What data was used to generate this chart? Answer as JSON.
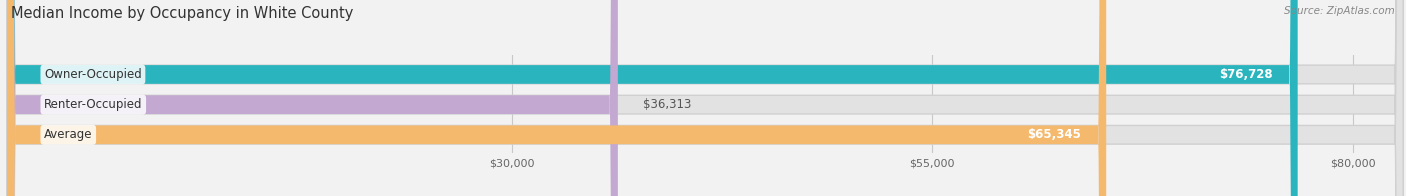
{
  "title": "Median Income by Occupancy in White County",
  "source": "Source: ZipAtlas.com",
  "categories": [
    "Owner-Occupied",
    "Renter-Occupied",
    "Average"
  ],
  "values": [
    76728,
    36313,
    65345
  ],
  "bar_colors": [
    "#2ab5be",
    "#c3a8d1",
    "#f5b96e"
  ],
  "label_colors": [
    "#ffffff",
    "#ffffff",
    "#ffffff"
  ],
  "value_labels": [
    "$76,728",
    "$36,313",
    "$65,345"
  ],
  "xmax": 83000,
  "xticks": [
    30000,
    55000,
    80000
  ],
  "xtick_labels": [
    "$30,000",
    "$55,000",
    "$80,000"
  ],
  "background_color": "#f2f2f2",
  "bar_bg_color": "#e2e2e2",
  "title_fontsize": 10.5,
  "source_fontsize": 7.5,
  "label_fontsize": 8.5,
  "value_fontsize": 8.5,
  "bar_height": 0.62
}
